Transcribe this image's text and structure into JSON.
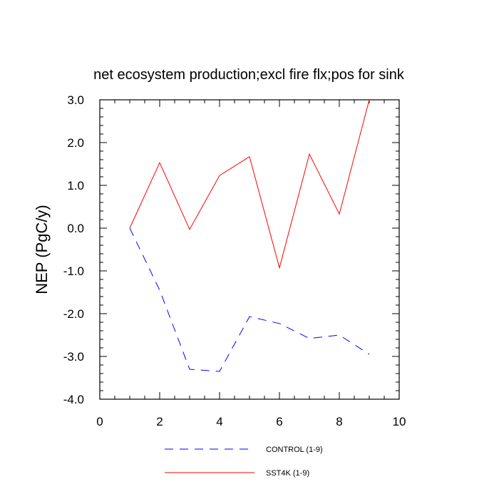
{
  "chart_data": {
    "type": "line",
    "title": "net ecosystem production;excl fire flx;pos for sink",
    "ylabel": "NEP  (PgC/y)",
    "xlabel": "",
    "xlim": [
      0,
      10
    ],
    "ylim": [
      -4,
      3
    ],
    "xticks": [
      0,
      2,
      4,
      6,
      8,
      10
    ],
    "xtick_labels": [
      "0",
      "2",
      "4",
      "6",
      "8",
      "10"
    ],
    "yticks": [
      -4,
      -3,
      -2,
      -1,
      0,
      1,
      2,
      3
    ],
    "ytick_labels": [
      "-4.0",
      "-3.0",
      "-2.0",
      "-1.0",
      "0.0",
      "1.0",
      "2.0",
      "3.0"
    ],
    "grid": false,
    "legend_position": "bottom",
    "x": [
      1,
      2,
      3,
      4,
      5,
      6,
      7,
      8,
      9
    ],
    "series": [
      {
        "name": "CONTROL (1-9)",
        "color": "#0000ff",
        "style": "dashed",
        "values": [
          0.0,
          -1.45,
          -3.3,
          -3.35,
          -2.07,
          -2.23,
          -2.58,
          -2.5,
          -2.95
        ]
      },
      {
        "name": "SST4K (1-9)",
        "color": "#ff0000",
        "style": "solid",
        "values": [
          0.0,
          1.53,
          -0.03,
          1.23,
          1.67,
          -0.93,
          1.73,
          0.33,
          3.0
        ]
      }
    ]
  }
}
